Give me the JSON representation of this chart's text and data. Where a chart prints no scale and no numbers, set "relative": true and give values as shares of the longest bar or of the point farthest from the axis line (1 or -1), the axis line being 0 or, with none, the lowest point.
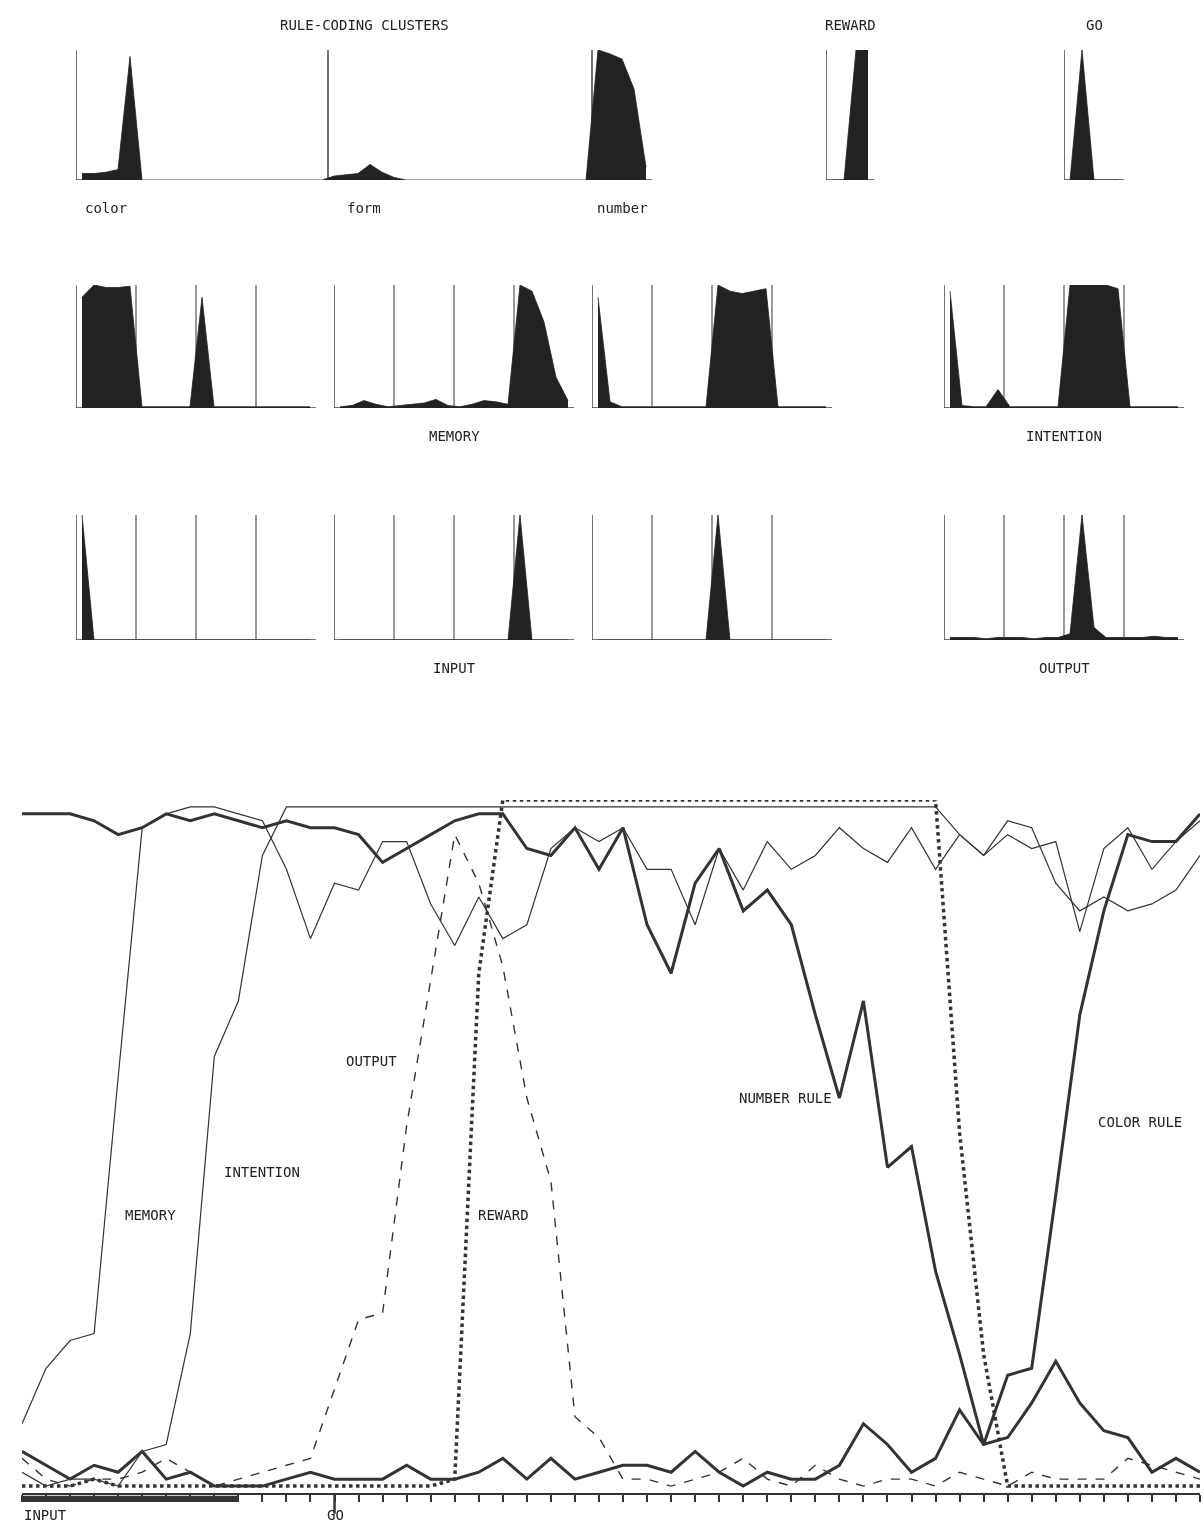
{
  "chart_data": [
    {
      "type": "area",
      "relative": true,
      "title": "RULE-CODING CLUSTERS",
      "annotations": [
        "color",
        "form",
        "number"
      ],
      "color": "#222222",
      "categories": [
        null,
        null,
        null,
        null,
        null,
        null,
        null,
        null,
        null,
        null,
        null,
        null,
        null,
        null,
        null,
        null,
        null,
        null,
        null,
        null,
        null,
        null,
        null,
        null,
        null,
        null,
        null,
        null,
        null,
        null,
        null,
        null,
        null,
        null,
        null,
        null,
        null,
        null,
        null,
        null,
        null,
        null,
        null,
        null,
        null,
        null,
        null,
        null
      ],
      "values": [
        0.05,
        0.05,
        0.06,
        0.08,
        0.95,
        0,
        0,
        0,
        0,
        0,
        0,
        0,
        0,
        0,
        0,
        0,
        0,
        0,
        0,
        0,
        0,
        0.03,
        0.04,
        0.05,
        0.12,
        0.06,
        0.02,
        0,
        0,
        0,
        0,
        0,
        0,
        0,
        0,
        0,
        0,
        0,
        0,
        0,
        0,
        0,
        0,
        1.0,
        0.97,
        0.93,
        0.7,
        0.1
      ]
    },
    {
      "type": "area",
      "relative": true,
      "title": "REWARD",
      "color": "#222222",
      "categories": [
        null,
        null,
        null,
        null
      ],
      "values": [
        0,
        0,
        1.0,
        1.0
      ]
    },
    {
      "type": "area",
      "relative": true,
      "title": "GO",
      "color": "#222222",
      "categories": [
        null,
        null,
        null,
        null,
        null
      ],
      "values": [
        0,
        1.0,
        0,
        0,
        0
      ]
    },
    {
      "type": "area",
      "relative": true,
      "color": "#222222",
      "categories": [
        null,
        null,
        null,
        null,
        null,
        null,
        null,
        null,
        null,
        null,
        null,
        null,
        null,
        null,
        null,
        null,
        null,
        null,
        null,
        null
      ],
      "values": [
        0.9,
        1.0,
        0.98,
        0.98,
        0.99,
        0.01,
        0.01,
        0.01,
        0.01,
        0.01,
        0.9,
        0.01,
        0.01,
        0.01,
        0.01,
        0.01,
        0.01,
        0.01,
        0.01,
        0.01
      ]
    },
    {
      "type": "area",
      "relative": true,
      "xlabel": "MEMORY",
      "color": "#222222",
      "categories": [
        null,
        null,
        null,
        null,
        null,
        null,
        null,
        null,
        null,
        null,
        null,
        null,
        null,
        null,
        null,
        null,
        null,
        null,
        null,
        null
      ],
      "values": [
        0.01,
        0.02,
        0.06,
        0.03,
        0.01,
        0.02,
        0.03,
        0.04,
        0.07,
        0.02,
        0.01,
        0.03,
        0.06,
        0.05,
        0.03,
        1.0,
        0.95,
        0.7,
        0.25,
        0.06
      ]
    },
    {
      "type": "area",
      "relative": true,
      "color": "#222222",
      "categories": [
        null,
        null,
        null,
        null,
        null,
        null,
        null,
        null,
        null,
        null,
        null,
        null,
        null,
        null,
        null,
        null,
        null,
        null,
        null,
        null
      ],
      "values": [
        0.9,
        0.05,
        0.01,
        0.01,
        0.01,
        0.01,
        0.01,
        0.01,
        0.01,
        0.01,
        1.0,
        0.95,
        0.93,
        0.95,
        0.97,
        0.01,
        0.01,
        0.01,
        0.01,
        0.01
      ]
    },
    {
      "type": "area",
      "relative": true,
      "xlabel": "INTENTION",
      "color": "#222222",
      "categories": [
        null,
        null,
        null,
        null,
        null,
        null,
        null,
        null,
        null,
        null,
        null,
        null,
        null,
        null,
        null,
        null,
        null,
        null,
        null,
        null
      ],
      "values": [
        0.95,
        0.02,
        0.01,
        0.01,
        0.15,
        0.01,
        0.01,
        0.01,
        0.01,
        0.01,
        1.0,
        1.0,
        1.0,
        1.0,
        0.97,
        0.01,
        0.01,
        0.01,
        0.01,
        0.01
      ]
    },
    {
      "type": "area",
      "relative": true,
      "color": "#222222",
      "categories": [
        null,
        null,
        null,
        null,
        null,
        null,
        null,
        null,
        null,
        null,
        null,
        null,
        null,
        null,
        null,
        null,
        null,
        null,
        null,
        null
      ],
      "values": [
        1.0,
        0,
        0,
        0,
        0,
        0,
        0,
        0,
        0,
        0,
        0,
        0,
        0,
        0,
        0,
        0,
        0,
        0,
        0,
        0
      ]
    },
    {
      "type": "area",
      "relative": true,
      "xlabel": "INPUT",
      "color": "#222222",
      "categories": [
        null,
        null,
        null,
        null,
        null,
        null,
        null,
        null,
        null,
        null,
        null,
        null,
        null,
        null,
        null,
        null,
        null,
        null,
        null,
        null
      ],
      "values": [
        0,
        0,
        0,
        0,
        0,
        0,
        0,
        0,
        0,
        0,
        0,
        0,
        0,
        0,
        0,
        1.0,
        0,
        0,
        0,
        0
      ]
    },
    {
      "type": "area",
      "relative": true,
      "color": "#222222",
      "categories": [
        null,
        null,
        null,
        null,
        null,
        null,
        null,
        null,
        null,
        null,
        null,
        null,
        null,
        null,
        null,
        null,
        null,
        null,
        null,
        null
      ],
      "values": [
        0,
        0,
        0,
        0,
        0,
        0,
        0,
        0,
        0,
        0,
        1.0,
        0,
        0,
        0,
        0,
        0,
        0,
        0,
        0,
        0
      ]
    },
    {
      "type": "area",
      "relative": true,
      "xlabel": "OUTPUT",
      "color": "#222222",
      "categories": [
        null,
        null,
        null,
        null,
        null,
        null,
        null,
        null,
        null,
        null,
        null,
        null,
        null,
        null,
        null,
        null,
        null,
        null,
        null,
        null
      ],
      "values": [
        0.02,
        0.02,
        0.02,
        0.01,
        0.02,
        0.02,
        0.02,
        0.01,
        0.02,
        0.02,
        0.05,
        1.0,
        0.1,
        0.02,
        0.02,
        0.02,
        0.02,
        0.03,
        0.02,
        0.02
      ]
    },
    {
      "type": "line",
      "relative": true,
      "annotations": [
        "INPUT",
        "GO"
      ],
      "categories": [
        null,
        null,
        null,
        null,
        null,
        null,
        null,
        null,
        null,
        null,
        null,
        null,
        null,
        null,
        null,
        null,
        null,
        null,
        null,
        null,
        null,
        null,
        null,
        null,
        null,
        null,
        null,
        null,
        null,
        null,
        null,
        null,
        null,
        null,
        null,
        null,
        null,
        null,
        null,
        null,
        null,
        null,
        null,
        null,
        null,
        null,
        null,
        null,
        null,
        null
      ],
      "series": [
        {
          "name": "MEMORY",
          "color": "#333333",
          "line_style": "solid",
          "values": [
            0.1,
            0.18,
            0.22,
            0.23,
            0.6,
            0.96,
            0.98,
            0.99,
            0.99,
            0.98,
            0.97,
            0.9,
            0.8,
            0.88,
            0.87,
            0.94,
            0.94,
            0.85,
            0.79,
            0.86,
            0.8,
            0.82,
            0.93,
            0.96,
            0.94,
            0.96,
            0.9,
            0.9,
            0.82,
            0.93,
            0.87,
            0.94,
            0.9,
            0.92,
            0.96,
            0.93,
            0.91,
            0.96,
            0.9,
            0.95,
            0.92,
            0.97,
            0.96,
            0.88,
            0.84,
            0.86,
            0.84,
            0.85,
            0.87,
            0.92
          ]
        },
        {
          "name": "INTENTION",
          "color": "#333333",
          "line_style": "solid",
          "values": [
            0.03,
            0.01,
            0.02,
            0.02,
            0.01,
            0.06,
            0.07,
            0.23,
            0.63,
            0.71,
            0.92,
            0.99,
            0.99,
            0.99,
            0.99,
            0.99,
            0.99,
            0.99,
            0.99,
            0.99,
            0.99,
            0.99,
            0.99,
            0.99,
            0.99,
            0.99,
            0.99,
            0.99,
            0.99,
            0.99,
            0.99,
            0.99,
            0.99,
            0.99,
            0.99,
            0.99,
            0.99,
            0.99,
            0.99,
            0.95,
            0.92,
            0.95,
            0.93,
            0.94,
            0.81,
            0.93,
            0.96,
            0.9,
            0.94,
            0.97
          ]
        },
        {
          "name": "OUTPUT",
          "color": "#333333",
          "line_style": "dashed",
          "values": [
            0.05,
            0.02,
            0.01,
            0.02,
            0.02,
            0.03,
            0.05,
            0.03,
            0.01,
            0.02,
            0.03,
            0.04,
            0.05,
            0.15,
            0.25,
            0.26,
            0.53,
            0.74,
            0.95,
            0.88,
            0.76,
            0.57,
            0.45,
            0.11,
            0.08,
            0.02,
            0.02,
            0.01,
            0.02,
            0.03,
            0.05,
            0.02,
            0.01,
            0.04,
            0.02,
            0.01,
            0.02,
            0.02,
            0.01,
            0.03,
            0.02,
            0.01,
            0.03,
            0.02,
            0.02,
            0.02,
            0.05,
            0.04,
            0.03,
            0.02
          ]
        },
        {
          "name": "REWARD",
          "color": "#333333",
          "line_style": "dotted",
          "values": [
            0.01,
            0.01,
            0.01,
            0.02,
            0.01,
            0.01,
            0.01,
            0.01,
            0.01,
            0.01,
            0.01,
            0.01,
            0.01,
            0.01,
            0.01,
            0.01,
            0.01,
            0.01,
            0.02,
            0.75,
            1.0,
            1.0,
            1.0,
            1.0,
            1.0,
            1.0,
            1.0,
            1.0,
            1.0,
            1.0,
            1.0,
            1.0,
            1.0,
            1.0,
            1.0,
            1.0,
            1.0,
            1.0,
            1.0,
            0.52,
            0.2,
            0.01,
            0.01,
            0.01,
            0.01,
            0.01,
            0.01,
            0.01,
            0.01,
            0.01
          ]
        },
        {
          "name": "NUMBER RULE",
          "color": "#333333",
          "line_style": "solid",
          "values": [
            0.98,
            0.98,
            0.98,
            0.97,
            0.95,
            0.96,
            0.98,
            0.97,
            0.98,
            0.97,
            0.96,
            0.97,
            0.96,
            0.96,
            0.95,
            0.91,
            0.93,
            0.95,
            0.97,
            0.98,
            0.98,
            0.93,
            0.92,
            0.96,
            0.9,
            0.96,
            0.82,
            0.75,
            0.88,
            0.93,
            0.84,
            0.87,
            0.82,
            0.69,
            0.57,
            0.71,
            0.47,
            0.5,
            0.32,
            0.2,
            0.07,
            0.08,
            0.13,
            0.19,
            0.13,
            0.09,
            0.08,
            0.03,
            0.05,
            0.03
          ]
        },
        {
          "name": "COLOR RULE",
          "color": "#333333",
          "line_style": "solid",
          "values": [
            0.06,
            0.04,
            0.02,
            0.04,
            0.03,
            0.06,
            0.02,
            0.03,
            0.01,
            0.01,
            0.01,
            0.02,
            0.03,
            0.02,
            0.02,
            0.02,
            0.04,
            0.02,
            0.02,
            0.03,
            0.05,
            0.02,
            0.05,
            0.02,
            0.03,
            0.04,
            0.04,
            0.03,
            0.06,
            0.03,
            0.01,
            0.03,
            0.02,
            0.02,
            0.04,
            0.1,
            0.07,
            0.03,
            0.05,
            0.12,
            0.07,
            0.17,
            0.18,
            0.43,
            0.69,
            0.84,
            0.95,
            0.94,
            0.94,
            0.98
          ]
        }
      ]
    }
  ]
}
